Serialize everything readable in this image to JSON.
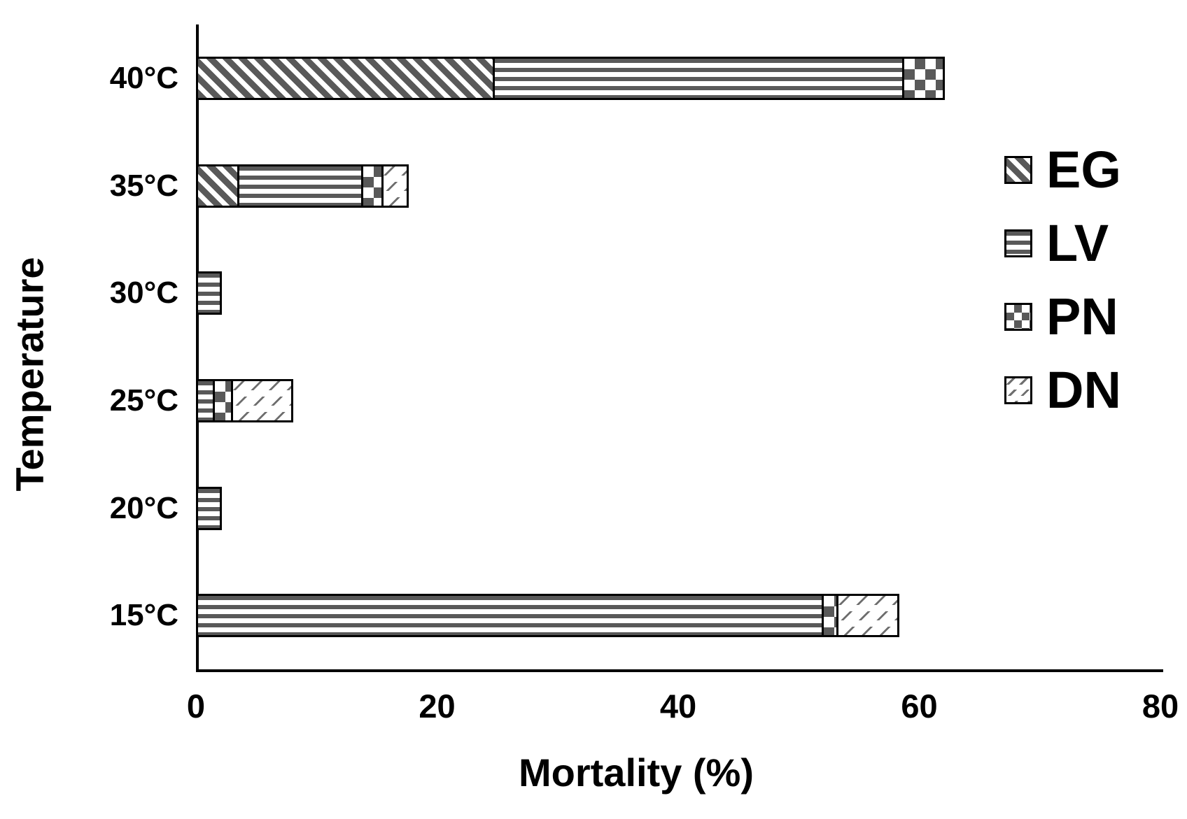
{
  "chart_data": {
    "type": "bar",
    "orientation": "horizontal",
    "stacked": true,
    "title": "",
    "xlabel": "Mortality (%)",
    "ylabel": "Temperature",
    "xlim": [
      0,
      80
    ],
    "xticks": [
      "0",
      "20",
      "40",
      "60",
      "80"
    ],
    "xtick_values": [
      0,
      20,
      40,
      60,
      80
    ],
    "grid": false,
    "categories": [
      "40°C",
      "35°C",
      "30°C",
      "25°C",
      "20°C",
      "15°C"
    ],
    "series": [
      {
        "name": "EG",
        "pattern": "diagonal-stripes",
        "values": [
          24.6,
          3.4,
          0,
          0,
          0,
          0
        ]
      },
      {
        "name": "LV",
        "pattern": "horizontal-stripes",
        "values": [
          34.0,
          10.3,
          1.8,
          1.4,
          1.8,
          51.9
        ]
      },
      {
        "name": "PN",
        "pattern": "checkerboard",
        "values": [
          3.2,
          1.7,
          0,
          1.5,
          0,
          1.2
        ]
      },
      {
        "name": "DN",
        "pattern": "light-diagonal-hatch",
        "values": [
          0,
          1.9,
          0,
          4.8,
          0,
          4.9
        ]
      }
    ],
    "totals": [
      61.8,
      17.3,
      1.8,
      7.7,
      1.8,
      58.0
    ],
    "legend": {
      "position": "right",
      "entries": [
        "EG",
        "LV",
        "PN",
        "DN"
      ]
    },
    "colors": {
      "pattern_gray": "#595959",
      "hatch_gray": "#6e6e6e",
      "axis_black": "#000000",
      "background": "#ffffff"
    }
  }
}
